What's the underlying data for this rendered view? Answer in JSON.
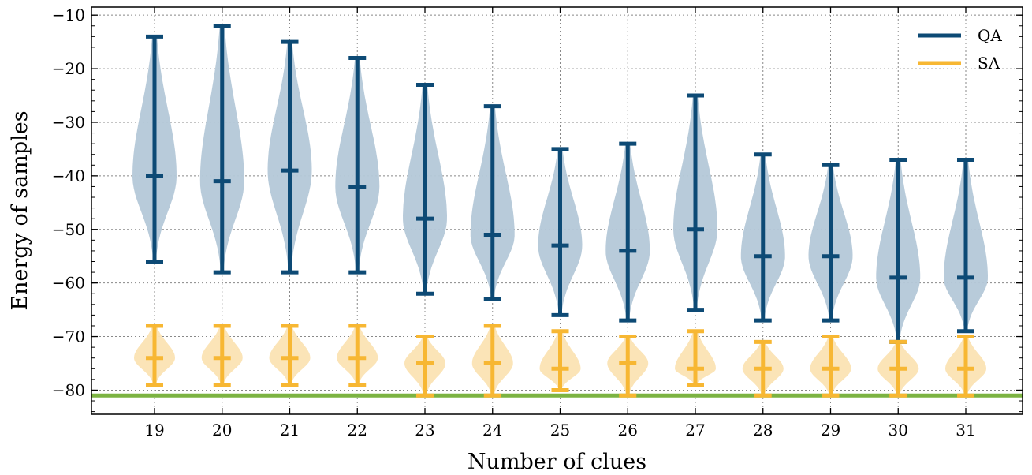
{
  "chart_data": {
    "type": "violin",
    "xlabel": "Number of clues",
    "ylabel": "Energy of samples",
    "ylim": [
      -84.5,
      -8.5
    ],
    "yticks": [
      -10,
      -20,
      -30,
      -40,
      -50,
      -60,
      -70,
      -80
    ],
    "ytick_labels": [
      "−10",
      "−20",
      "−30",
      "−40",
      "−50",
      "−60",
      "−70",
      "−80"
    ],
    "categories": [
      "19",
      "20",
      "21",
      "22",
      "23",
      "24",
      "25",
      "26",
      "27",
      "28",
      "29",
      "30",
      "31"
    ],
    "grid": true,
    "legend_position": "top-right",
    "reference_line": {
      "y": -81,
      "color": "#7cb342"
    },
    "series": [
      {
        "name": "QA",
        "color": "#0d4a75",
        "fill": "#b4c8d8",
        "max": [
          -14,
          -12,
          -15,
          -18,
          -23,
          -27,
          -35,
          -34,
          -25,
          -36,
          -38,
          -37,
          -37
        ],
        "median": [
          -40,
          -41,
          -39,
          -42,
          -48,
          -51,
          -53,
          -54,
          -50,
          -55,
          -55,
          -59,
          -59
        ],
        "min": [
          -56,
          -58,
          -58,
          -58,
          -62,
          -63,
          -66,
          -67,
          -65,
          -67,
          -67,
          -71,
          -69
        ]
      },
      {
        "name": "SA",
        "color": "#f7b733",
        "fill": "#fbe3b3",
        "max": [
          -68,
          -68,
          -68,
          -68,
          -70,
          -68,
          -69,
          -70,
          -69,
          -71,
          -70,
          -71,
          -70
        ],
        "median": [
          -74,
          -74,
          -74,
          -74,
          -75,
          -75,
          -76,
          -75,
          -76,
          -76,
          -76,
          -76,
          -76
        ],
        "min": [
          -79,
          -79,
          -79,
          -79,
          -81,
          -81,
          -80,
          -81,
          -79,
          -81,
          -81,
          -81,
          -81
        ]
      }
    ]
  }
}
